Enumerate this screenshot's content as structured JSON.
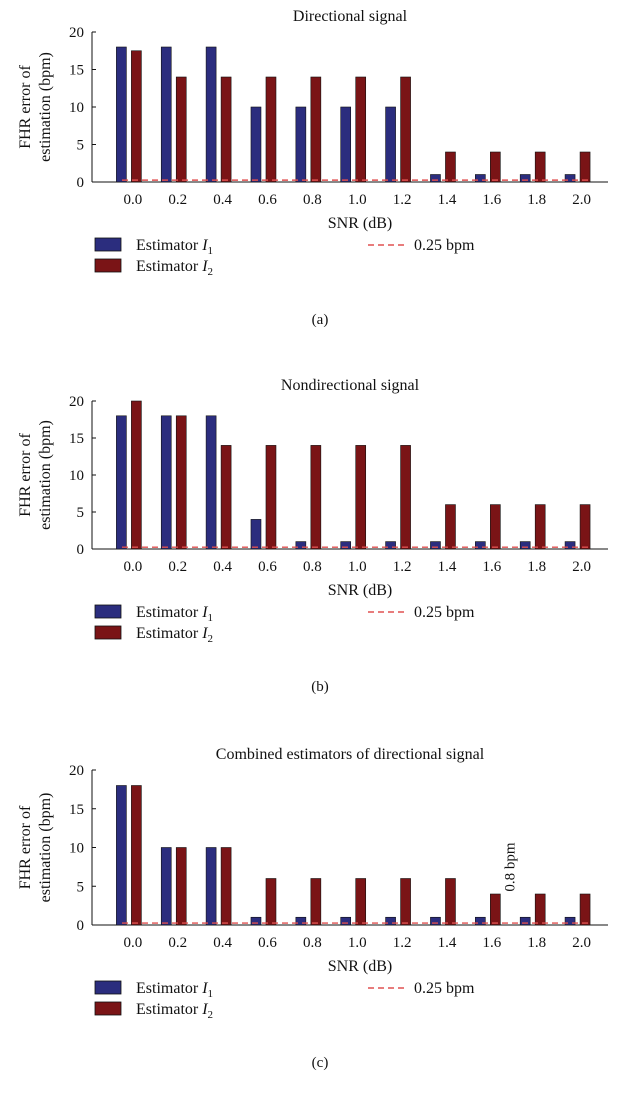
{
  "colors": {
    "estimator_i1": "#2b2d7e",
    "estimator_i2": "#7a1416",
    "reference_line": "#e05050",
    "axis": "#111111"
  },
  "legend_labels": {
    "estimator_i1_text": "Estimator ",
    "estimator_i2_text": "Estimator ",
    "italic_symbol": "I",
    "subscript_1": "1",
    "subscript_2": "2",
    "reference": "0.25 bpm"
  },
  "chart_data": [
    {
      "type": "bar",
      "title": "Directional signal",
      "caption": "(a)",
      "xlabel": "SNR (dB)",
      "ylabel_line1": "FHR error of",
      "ylabel_line2": "estimation (bpm)",
      "ylim": [
        0,
        20
      ],
      "yticks": [
        0,
        5,
        10,
        15,
        20
      ],
      "categories": [
        "0.0",
        "0.2",
        "0.4",
        "0.6",
        "0.8",
        "1.0",
        "1.2",
        "1.4",
        "1.6",
        "1.8",
        "2.0"
      ],
      "series": [
        {
          "name": "Estimator I1",
          "values": [
            18,
            18,
            18,
            10,
            10,
            10,
            10,
            1,
            1,
            1,
            1
          ]
        },
        {
          "name": "Estimator I2",
          "values": [
            17.5,
            14,
            14,
            14,
            14,
            14,
            14,
            4,
            4,
            4,
            4
          ]
        }
      ],
      "reference_line": {
        "name": "0.25 bpm",
        "value": 0.25
      },
      "annotations": []
    },
    {
      "type": "bar",
      "title": "Nondirectional signal",
      "caption": "(b)",
      "xlabel": "SNR (dB)",
      "ylabel_line1": "FHR error of",
      "ylabel_line2": "estimation (bpm)",
      "ylim": [
        0,
        20
      ],
      "yticks": [
        0,
        5,
        10,
        15,
        20
      ],
      "categories": [
        "0.0",
        "0.2",
        "0.4",
        "0.6",
        "0.8",
        "1.0",
        "1.2",
        "1.4",
        "1.6",
        "1.8",
        "2.0"
      ],
      "series": [
        {
          "name": "Estimator I1",
          "values": [
            18,
            18,
            18,
            4,
            1,
            1,
            1,
            1,
            1,
            1,
            1
          ]
        },
        {
          "name": "Estimator I2",
          "values": [
            20,
            18,
            14,
            14,
            14,
            14,
            14,
            6,
            6,
            6,
            6
          ]
        }
      ],
      "reference_line": {
        "name": "0.25 bpm",
        "value": 0.25
      },
      "annotations": []
    },
    {
      "type": "bar",
      "title": "Combined estimators of directional signal",
      "caption": "(c)",
      "xlabel": "SNR (dB)",
      "ylabel_line1": "FHR error of",
      "ylabel_line2": "estimation (bpm)",
      "ylim": [
        0,
        20
      ],
      "yticks": [
        0,
        5,
        10,
        15,
        20
      ],
      "categories": [
        "0.0",
        "0.2",
        "0.4",
        "0.6",
        "0.8",
        "1.0",
        "1.2",
        "1.4",
        "1.6",
        "1.8",
        "2.0"
      ],
      "series": [
        {
          "name": "Estimator I1",
          "values": [
            18,
            10,
            10,
            1,
            1,
            1,
            1,
            1,
            1,
            1,
            1
          ]
        },
        {
          "name": "Estimator I2",
          "values": [
            18,
            10,
            10,
            6,
            6,
            6,
            6,
            6,
            4,
            4,
            4
          ]
        }
      ],
      "reference_line": {
        "name": "0.25 bpm",
        "value": 0.25
      },
      "annotations": [
        {
          "text": "0.8 bpm",
          "category": "1.7",
          "y": 4.3,
          "rotation": "vertical"
        }
      ]
    }
  ]
}
